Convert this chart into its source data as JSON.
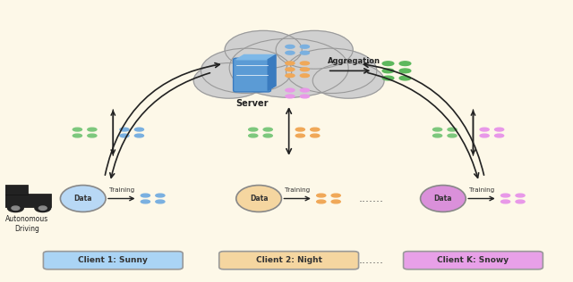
{
  "background_color": "#fdf8e8",
  "cloud_color": "#d0d0d0",
  "cloud_edge_color": "#999999",
  "dots_green": "#7dc87d",
  "dots_blue": "#7ab0e0",
  "dots_orange": "#f0a858",
  "dots_pink": "#e898e8",
  "dots_merged": "#5db85d",
  "arrow_color": "#222222",
  "server_label": "Server",
  "aggregation_label": "Aggregation",
  "training_label": "Training",
  "autonomous_driving_label": "Autonomous\nDriving",
  "dots_ellipsis": ".......",
  "client1_label": "Client 1: Sunny",
  "client2_label": "Client 2: Night",
  "clientk_label": "Client K: Snowy",
  "client1_box_color": "#aad4f5",
  "client2_box_color": "#f5d6a0",
  "clientk_box_color": "#e8a0e8",
  "client1_data_color": "#b8d8f5",
  "client2_data_color": "#f5d6a0",
  "clientk_data_color": "#da90da",
  "client1_model_color": "#7ab0e0",
  "client2_model_color": "#f0a858",
  "clientk_model_color": "#e898e8",
  "server_blue": "#5b9bd5",
  "server_blue_light": "#7db8e8",
  "server_blue_dark": "#3a7bbf"
}
